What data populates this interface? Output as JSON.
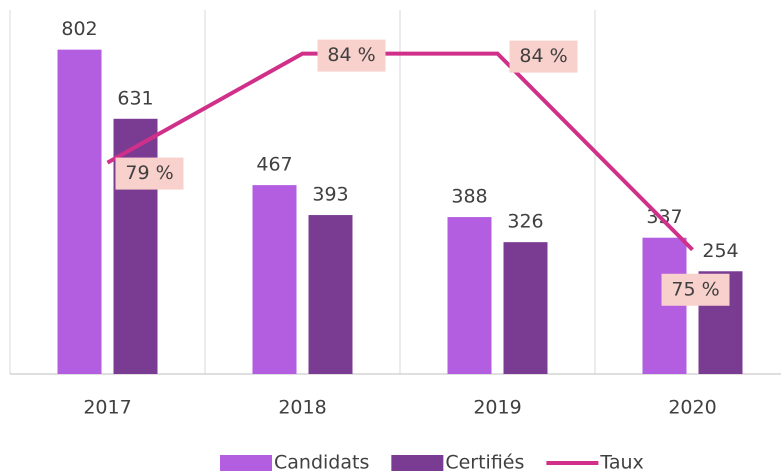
{
  "chart_data": {
    "type": "bar",
    "categories": [
      "2017",
      "2018",
      "2019",
      "2020"
    ],
    "series": [
      {
        "name": "Candidats",
        "color": "#b35de0",
        "values": [
          802,
          467,
          388,
          337
        ]
      },
      {
        "name": "Certifiés",
        "color": "#7a3c92",
        "values": [
          631,
          393,
          326,
          254
        ]
      },
      {
        "name": "Taux",
        "color": "#d0308a",
        "type": "line",
        "axis": "y2",
        "values": [
          79,
          84,
          84,
          75
        ],
        "value_labels": [
          "79 %",
          "84 %",
          "84 %",
          "75 %"
        ]
      }
    ],
    "ylim": [
      0,
      900
    ],
    "y2lim": [
      69.3,
      86
    ],
    "legend": "bottom"
  }
}
